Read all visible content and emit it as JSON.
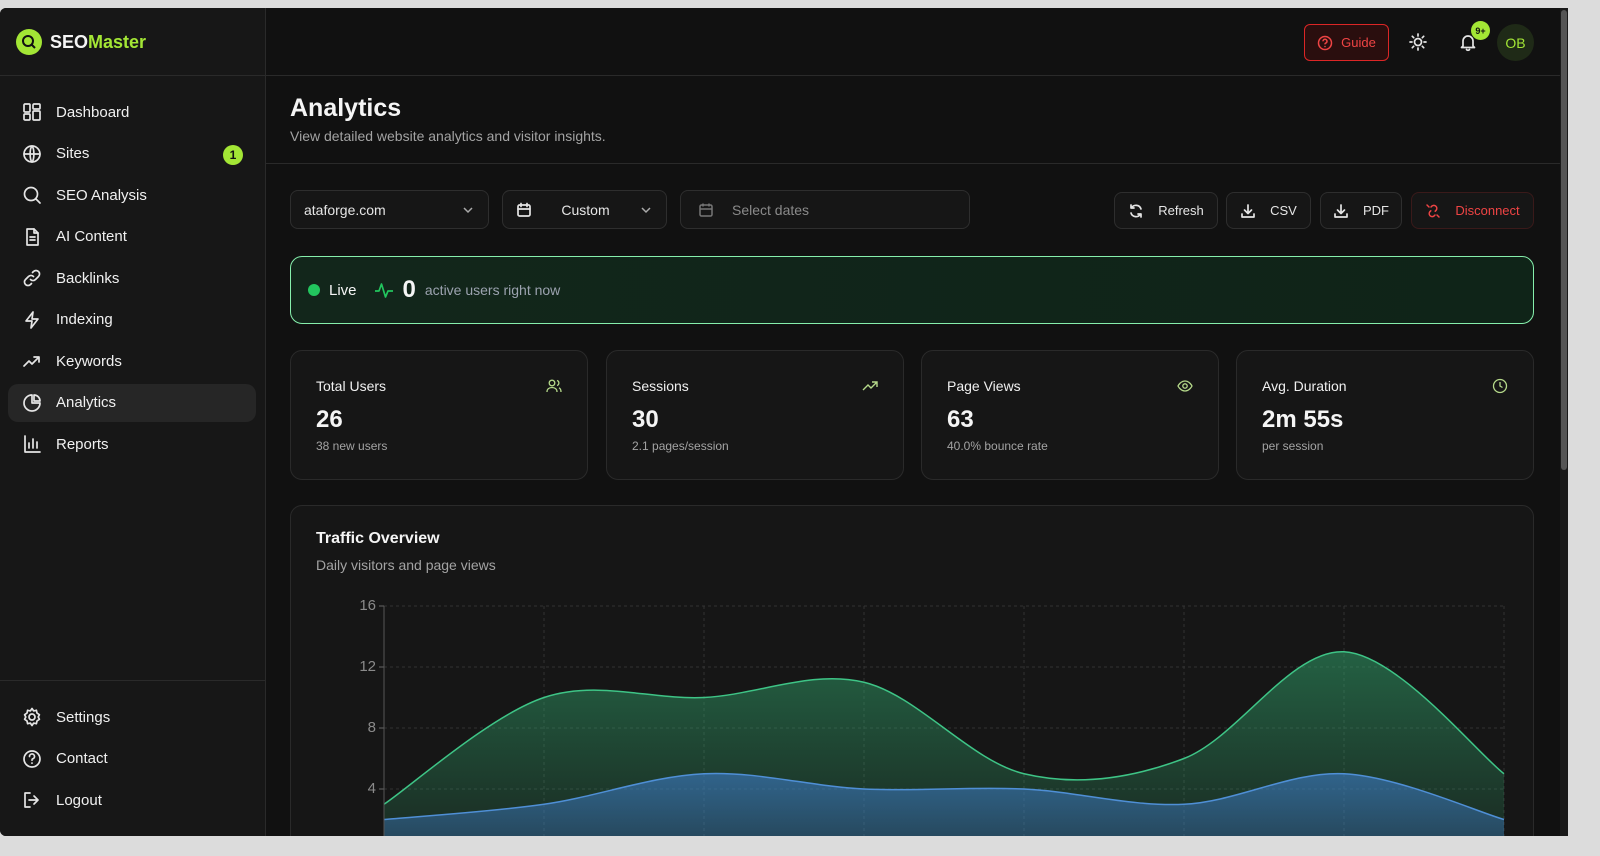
{
  "brand": {
    "name_a": "SEO",
    "name_b": "Master"
  },
  "header": {
    "guide": "Guide",
    "notification_count": "9+",
    "avatar": "OB"
  },
  "nav": [
    {
      "label": "Dashboard"
    },
    {
      "label": "Sites",
      "badge": 1
    },
    {
      "label": "SEO Analysis"
    },
    {
      "label": "AI Content"
    },
    {
      "label": "Backlinks"
    },
    {
      "label": "Indexing"
    },
    {
      "label": "Keywords"
    },
    {
      "label": "Analytics"
    },
    {
      "label": "Reports"
    }
  ],
  "nav_bottom": [
    "Settings",
    "Contact",
    "Logout"
  ],
  "page": {
    "title": "Analytics",
    "subtitle": "View detailed website analytics and visitor insights."
  },
  "filters": {
    "site": "ataforge.com",
    "range": "Custom",
    "dates": "Select dates"
  },
  "actions": [
    "Refresh",
    "CSV",
    "PDF",
    "Disconnect"
  ],
  "live": {
    "label": "Live",
    "count": 0,
    "text": "active users right now"
  },
  "stats": [
    {
      "label": "Total Users",
      "value": 26,
      "note": "38 new users"
    },
    {
      "label": "Sessions",
      "value": 30,
      "note": "2.1 pages/session"
    },
    {
      "label": "Page Views",
      "value": 63,
      "note": "40.0% bounce rate"
    },
    {
      "label": "Avg. Duration",
      "value": "2m 55s",
      "note": "per session"
    }
  ],
  "chart_data": {
    "type": "area",
    "title": "Traffic Overview",
    "subtitle": "Daily visitors and page views",
    "categories": [
      null,
      null,
      null,
      null,
      null,
      null,
      null,
      null
    ],
    "series": [
      {
        "color": "#3ec486",
        "values": [
          3,
          10,
          10,
          11,
          5,
          6,
          13,
          5
        ]
      },
      {
        "color": "#4f8fd6",
        "values": [
          2,
          3,
          5,
          4,
          4,
          3,
          5,
          2
        ]
      }
    ],
    "ylim": [
      0,
      16
    ],
    "yticks": [
      4,
      8,
      12,
      16
    ],
    "grid": true
  }
}
